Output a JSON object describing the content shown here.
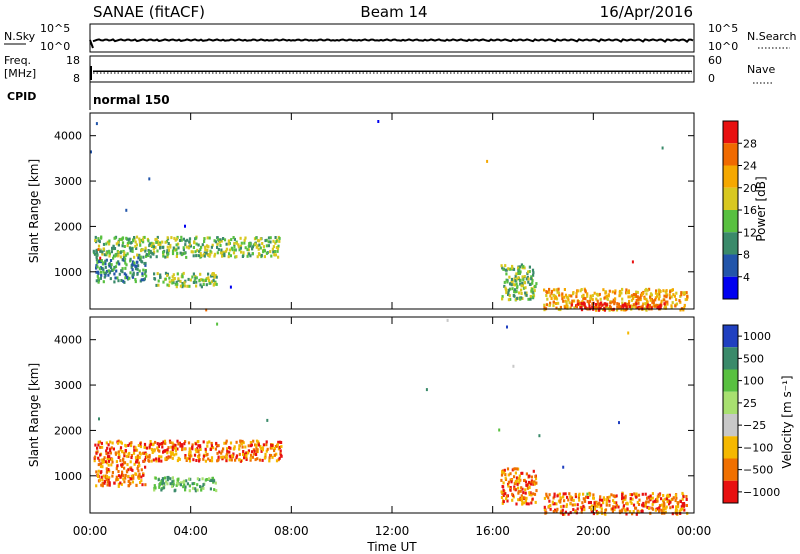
{
  "header": {
    "station": "SANAE (fitACF)",
    "beam": "Beam 14",
    "date": "16/Apr/2016"
  },
  "chart_data": [
    {
      "name": "nsky_nsearch",
      "type": "line",
      "left_label": "N.Sky",
      "right_label": "N.Search",
      "left_ticks": [
        "10^5",
        "10^0"
      ],
      "right_ticks": [
        "10^5",
        "10^0"
      ]
    },
    {
      "name": "freq_nave",
      "type": "line",
      "left_label_1": "Freq.",
      "left_label_2": "[MHz]",
      "right_label": "Nave",
      "left_ticks": [
        "18",
        "8"
      ],
      "right_ticks": [
        "60",
        "0"
      ],
      "freq_value": 12,
      "nave_value": 19
    },
    {
      "name": "cpid",
      "type": "table",
      "label": "CPID",
      "value": "normal 150"
    },
    {
      "name": "power",
      "type": "heatmap",
      "ylabel": "Slant Range [km]",
      "yticks": [
        "1000",
        "2000",
        "3000",
        "4000"
      ],
      "ylim": [
        180,
        4500
      ],
      "colorbar_label": "Power [dB]",
      "colorbar_ticks": [
        "4",
        "8",
        "12",
        "16",
        "20",
        "24",
        "28"
      ],
      "colors": [
        "#0000f0",
        "#2255aa",
        "#3a8a6a",
        "#58c040",
        "#d8c820",
        "#f5a800",
        "#f06a00",
        "#e81010"
      ],
      "regions": [
        {
          "t0": 0.1,
          "t1": 7.6,
          "r0": 1350,
          "r1": 1800,
          "level": 3
        },
        {
          "t0": 0.2,
          "t1": 2.2,
          "r0": 800,
          "r1": 1350,
          "level": 2
        },
        {
          "t0": 2.5,
          "t1": 5.0,
          "r0": 700,
          "r1": 1000,
          "level": 3
        },
        {
          "t0": 16.3,
          "t1": 17.7,
          "r0": 400,
          "r1": 1200,
          "level": 3
        },
        {
          "t0": 18.0,
          "t1": 23.7,
          "r0": 180,
          "r1": 650,
          "level": 5
        },
        {
          "t0": 19.0,
          "t1": 22.8,
          "r0": 180,
          "r1": 350,
          "level": 7
        }
      ]
    },
    {
      "name": "velocity",
      "type": "heatmap",
      "ylabel": "Slant Range [km]",
      "yticks": [
        "1000",
        "2000",
        "3000",
        "4000"
      ],
      "ylim": [
        180,
        4500
      ],
      "xticks": [
        "00:00",
        "04:00",
        "08:00",
        "12:00",
        "16:00",
        "20:00",
        "00:00"
      ],
      "xlabel": "Time UT",
      "colorbar_label": "Velocity [m s⁻¹]",
      "colorbar_ticks": [
        "1000",
        "500",
        "100",
        "25",
        "−25",
        "−100",
        "−500",
        "−1000"
      ],
      "colors": [
        "#2040c0",
        "#3a8a6a",
        "#58c040",
        "#a8e070",
        "#c8c8c8",
        "#f5b800",
        "#f07000",
        "#e81010"
      ],
      "regions": [
        {
          "t0": 0.1,
          "t1": 7.6,
          "r0": 1350,
          "r1": 1800,
          "level": 6
        },
        {
          "t0": 0.2,
          "t1": 2.2,
          "r0": 800,
          "r1": 1350,
          "level": 6
        },
        {
          "t0": 2.5,
          "t1": 5.0,
          "r0": 700,
          "r1": 1000,
          "level": 2
        },
        {
          "t0": 16.3,
          "t1": 17.7,
          "r0": 400,
          "r1": 1200,
          "level": 6
        },
        {
          "t0": 18.0,
          "t1": 23.7,
          "r0": 180,
          "r1": 650,
          "level": 6
        }
      ]
    }
  ]
}
